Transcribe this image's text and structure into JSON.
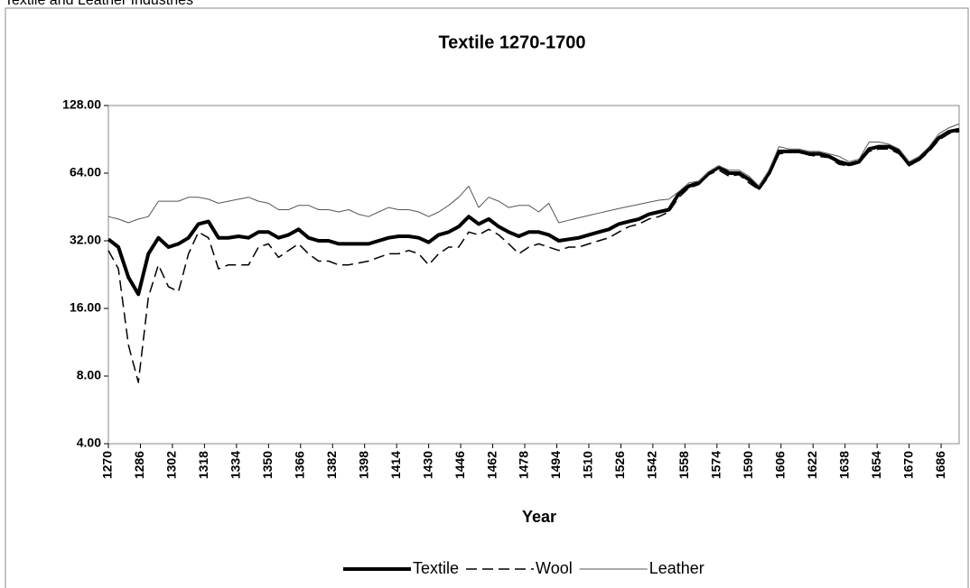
{
  "page_title": "Textile and Leather Industries",
  "chart_data": {
    "type": "line",
    "title": "Textile 1270-1700",
    "x_label": "Year",
    "log_scale": "y",
    "base": 2,
    "legend": "bottom",
    "x": [
      1270,
      1275,
      1280,
      1285,
      1290,
      1295,
      1300,
      1305,
      1310,
      1315,
      1320,
      1325,
      1330,
      1335,
      1340,
      1345,
      1350,
      1355,
      1360,
      1365,
      1370,
      1375,
      1380,
      1385,
      1390,
      1395,
      1400,
      1405,
      1410,
      1415,
      1420,
      1425,
      1430,
      1435,
      1440,
      1445,
      1450,
      1455,
      1460,
      1465,
      1470,
      1475,
      1480,
      1485,
      1490,
      1495,
      1500,
      1505,
      1510,
      1515,
      1520,
      1525,
      1530,
      1535,
      1540,
      1545,
      1550,
      1555,
      1560,
      1565,
      1570,
      1575,
      1580,
      1585,
      1590,
      1595,
      1600,
      1605,
      1610,
      1615,
      1620,
      1625,
      1630,
      1635,
      1640,
      1645,
      1650,
      1655,
      1660,
      1665,
      1670,
      1675,
      1680,
      1685,
      1690,
      1695
    ],
    "xlim": [
      1270,
      1695
    ],
    "xticks": [
      1270,
      1286,
      1302,
      1318,
      1334,
      1350,
      1366,
      1382,
      1398,
      1414,
      1430,
      1446,
      1462,
      1478,
      1494,
      1510,
      1526,
      1542,
      1558,
      1574,
      1590,
      1606,
      1622,
      1638,
      1654,
      1670,
      1686
    ],
    "ylim": [
      4,
      128
    ],
    "yticks": [
      {
        "value": 4,
        "label": "4.00"
      },
      {
        "value": 8,
        "label": "8.00"
      },
      {
        "value": 16,
        "label": "16.00"
      },
      {
        "value": 32,
        "label": "32.00"
      },
      {
        "value": 64,
        "label": "64.00"
      },
      {
        "value": 128,
        "label": "128.00"
      }
    ],
    "series": [
      {
        "name": "Textile",
        "color": "#000000",
        "width": 4,
        "dash": "none",
        "values": [
          32.5,
          30,
          22,
          18.5,
          28,
          33,
          30,
          31,
          33,
          38,
          39,
          33,
          33,
          33.5,
          33,
          35,
          35,
          33,
          34,
          36,
          33,
          32,
          32,
          31,
          31,
          31,
          31,
          32,
          33,
          33.5,
          33.5,
          33,
          31.5,
          34,
          35,
          37,
          41,
          38,
          40,
          37,
          35,
          33.5,
          35,
          35,
          34,
          32,
          32.5,
          33,
          34,
          35,
          36,
          38,
          39,
          40,
          42,
          43,
          44,
          52,
          56,
          58,
          64,
          68,
          64,
          64,
          60,
          55,
          64,
          80,
          80,
          80,
          78,
          78,
          76,
          72,
          70,
          72,
          82,
          84,
          84,
          80,
          70,
          74,
          82,
          92,
          98,
          100
        ]
      },
      {
        "name": "Wool",
        "color": "#000000",
        "width": 1.5,
        "dash": "12 6",
        "values": [
          29,
          24,
          11,
          7.5,
          18,
          25,
          20,
          19,
          28,
          35,
          33,
          24,
          25,
          25,
          25,
          30,
          31,
          27,
          29,
          31,
          28,
          26,
          26,
          25,
          25,
          25.5,
          26,
          27,
          28,
          28,
          29,
          28,
          25,
          28,
          30,
          30,
          35,
          34,
          36,
          34,
          31,
          28,
          30,
          31,
          30,
          29,
          30,
          30,
          31,
          32,
          33,
          35,
          37,
          38,
          40,
          41,
          43,
          50,
          55,
          57,
          63,
          66,
          62,
          63,
          58,
          54,
          62,
          78,
          79,
          80,
          77,
          76,
          75,
          70,
          69,
          71,
          80,
          82,
          82,
          78,
          69,
          73,
          80,
          90,
          96,
          98
        ]
      },
      {
        "name": "Leather",
        "color": "#555555",
        "width": 1,
        "dash": "none",
        "values": [
          41,
          40,
          38.5,
          40,
          41,
          48,
          48,
          48,
          50,
          50,
          49,
          47,
          48,
          49,
          50,
          48,
          47,
          44,
          44,
          46,
          46,
          44,
          44,
          43,
          44,
          42,
          41,
          43,
          45,
          44,
          44,
          43,
          41,
          43,
          46,
          50,
          56,
          45,
          50,
          48,
          45,
          46,
          46,
          43,
          47,
          38.5,
          39.5,
          40.5,
          41.5,
          42.5,
          43.5,
          44.5,
          45.5,
          46.5,
          47.5,
          48.5,
          49,
          53,
          58,
          59,
          65,
          69,
          66,
          66,
          62,
          56,
          66,
          84,
          82,
          82,
          80,
          80,
          78,
          76,
          72,
          74,
          88,
          88,
          86,
          82,
          72,
          76,
          84,
          96,
          102,
          106
        ]
      }
    ]
  }
}
